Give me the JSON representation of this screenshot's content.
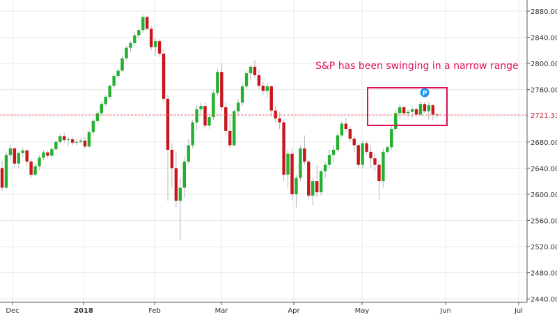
{
  "chart_data": {
    "type": "candlestick",
    "title": "",
    "xlabel": "",
    "ylabel": "",
    "y_axis_side": "right",
    "ylim": [
      2420,
      2890
    ],
    "y_ticks": [
      "2880.00",
      "2840.00",
      "2800.00",
      "2760.00",
      "2720.00",
      "2680.00",
      "2640.00",
      "2600.00",
      "2560.00",
      "2520.00",
      "2480.00",
      "2440.00"
    ],
    "x_labels": [
      {
        "label": "Dec",
        "bold": false
      },
      {
        "label": "2018",
        "bold": true
      },
      {
        "label": "Feb",
        "bold": false
      },
      {
        "label": "Mar",
        "bold": false
      },
      {
        "label": "Apr",
        "bold": false
      },
      {
        "label": "May",
        "bold": false
      },
      {
        "label": "Jun",
        "bold": false
      },
      {
        "label": "Jul",
        "bold": false
      }
    ],
    "grid": true,
    "current_price": "2721.33",
    "annotation": "S&P has been swinging in a narrow range",
    "marker": "P",
    "colors": {
      "up": "#22b02e",
      "down": "#c8161d",
      "price_line": "#e85a5a",
      "annotation": "#e0115f",
      "marker": "#2196f3"
    },
    "candles": [
      [
        2640,
        2651,
        2605,
        2610
      ],
      [
        2610,
        2665,
        2608,
        2660
      ],
      [
        2660,
        2676,
        2654,
        2670
      ],
      [
        2670,
        2672,
        2641,
        2647
      ],
      [
        2647,
        2666,
        2640,
        2663
      ],
      [
        2663,
        2672,
        2657,
        2667
      ],
      [
        2667,
        2668,
        2644,
        2650
      ],
      [
        2650,
        2654,
        2625,
        2630
      ],
      [
        2630,
        2648,
        2628,
        2643
      ],
      [
        2643,
        2660,
        2637,
        2656
      ],
      [
        2656,
        2668,
        2652,
        2664
      ],
      [
        2664,
        2666,
        2655,
        2659
      ],
      [
        2659,
        2673,
        2656,
        2669
      ],
      [
        2669,
        2683,
        2666,
        2680
      ],
      [
        2680,
        2693,
        2677,
        2689
      ],
      [
        2689,
        2694,
        2679,
        2683
      ],
      [
        2683,
        2688,
        2674,
        2684
      ],
      [
        2684,
        2687,
        2675,
        2679
      ],
      [
        2679,
        2684,
        2674,
        2680
      ],
      [
        2680,
        2686,
        2677,
        2682
      ],
      [
        2682,
        2688,
        2669,
        2673
      ],
      [
        2673,
        2698,
        2671,
        2695
      ],
      [
        2695,
        2716,
        2690,
        2712
      ],
      [
        2712,
        2728,
        2709,
        2724
      ],
      [
        2724,
        2742,
        2721,
        2738
      ],
      [
        2738,
        2752,
        2735,
        2749
      ],
      [
        2749,
        2768,
        2745,
        2766
      ],
      [
        2766,
        2784,
        2763,
        2781
      ],
      [
        2781,
        2793,
        2777,
        2789
      ],
      [
        2789,
        2812,
        2786,
        2808
      ],
      [
        2808,
        2827,
        2804,
        2824
      ],
      [
        2824,
        2834,
        2817,
        2831
      ],
      [
        2831,
        2847,
        2828,
        2843
      ],
      [
        2843,
        2856,
        2838,
        2851
      ],
      [
        2851,
        2875,
        2847,
        2871
      ],
      [
        2871,
        2873,
        2850,
        2853
      ],
      [
        2853,
        2858,
        2820,
        2825
      ],
      [
        2825,
        2838,
        2812,
        2834
      ],
      [
        2834,
        2837,
        2810,
        2815
      ],
      [
        2815,
        2822,
        2740,
        2746
      ],
      [
        2746,
        2752,
        2590,
        2668
      ],
      [
        2668,
        2678,
        2610,
        2640
      ],
      [
        2640,
        2665,
        2580,
        2590
      ],
      [
        2590,
        2625,
        2530,
        2610
      ],
      [
        2610,
        2658,
        2595,
        2650
      ],
      [
        2650,
        2685,
        2646,
        2675
      ],
      [
        2675,
        2714,
        2670,
        2710
      ],
      [
        2710,
        2736,
        2698,
        2730
      ],
      [
        2730,
        2740,
        2720,
        2735
      ],
      [
        2735,
        2740,
        2700,
        2705
      ],
      [
        2705,
        2723,
        2700,
        2718
      ],
      [
        2718,
        2760,
        2714,
        2755
      ],
      [
        2755,
        2792,
        2750,
        2787
      ],
      [
        2787,
        2800,
        2728,
        2733
      ],
      [
        2733,
        2740,
        2690,
        2697
      ],
      [
        2697,
        2720,
        2670,
        2675
      ],
      [
        2675,
        2730,
        2673,
        2727
      ],
      [
        2727,
        2746,
        2720,
        2740
      ],
      [
        2740,
        2770,
        2735,
        2765
      ],
      [
        2765,
        2790,
        2760,
        2785
      ],
      [
        2785,
        2798,
        2775,
        2795
      ],
      [
        2795,
        2805,
        2778,
        2782
      ],
      [
        2782,
        2790,
        2760,
        2766
      ],
      [
        2766,
        2772,
        2753,
        2758
      ],
      [
        2758,
        2770,
        2748,
        2765
      ],
      [
        2765,
        2767,
        2720,
        2728
      ],
      [
        2728,
        2734,
        2710,
        2716
      ],
      [
        2716,
        2725,
        2700,
        2710
      ],
      [
        2710,
        2714,
        2620,
        2630
      ],
      [
        2630,
        2668,
        2610,
        2662
      ],
      [
        2662,
        2670,
        2590,
        2600
      ],
      [
        2600,
        2630,
        2580,
        2625
      ],
      [
        2625,
        2675,
        2620,
        2670
      ],
      [
        2670,
        2690,
        2645,
        2650
      ],
      [
        2650,
        2652,
        2592,
        2598
      ],
      [
        2598,
        2625,
        2583,
        2620
      ],
      [
        2620,
        2645,
        2595,
        2603
      ],
      [
        2603,
        2638,
        2598,
        2635
      ],
      [
        2635,
        2650,
        2625,
        2645
      ],
      [
        2645,
        2668,
        2640,
        2660
      ],
      [
        2660,
        2675,
        2648,
        2668
      ],
      [
        2668,
        2695,
        2664,
        2690
      ],
      [
        2690,
        2712,
        2687,
        2708
      ],
      [
        2708,
        2716,
        2696,
        2700
      ],
      [
        2700,
        2705,
        2680,
        2685
      ],
      [
        2685,
        2690,
        2665,
        2675
      ],
      [
        2675,
        2677,
        2640,
        2645
      ],
      [
        2645,
        2682,
        2640,
        2678
      ],
      [
        2678,
        2682,
        2660,
        2665
      ],
      [
        2665,
        2674,
        2640,
        2655
      ],
      [
        2655,
        2662,
        2635,
        2645
      ],
      [
        2645,
        2650,
        2592,
        2620
      ],
      [
        2620,
        2670,
        2610,
        2665
      ],
      [
        2665,
        2675,
        2662,
        2672
      ],
      [
        2672,
        2705,
        2668,
        2700
      ],
      [
        2700,
        2728,
        2696,
        2724
      ],
      [
        2724,
        2738,
        2715,
        2733
      ],
      [
        2733,
        2736,
        2719,
        2724
      ],
      [
        2724,
        2730,
        2718,
        2726
      ],
      [
        2726,
        2735,
        2717,
        2730
      ],
      [
        2730,
        2734,
        2719,
        2722
      ],
      [
        2722,
        2742,
        2720,
        2738
      ],
      [
        2738,
        2741,
        2724,
        2727
      ],
      [
        2727,
        2742,
        2714,
        2736
      ],
      [
        2736,
        2738,
        2714,
        2722
      ],
      [
        2722,
        2725,
        2717,
        2721
      ]
    ]
  }
}
